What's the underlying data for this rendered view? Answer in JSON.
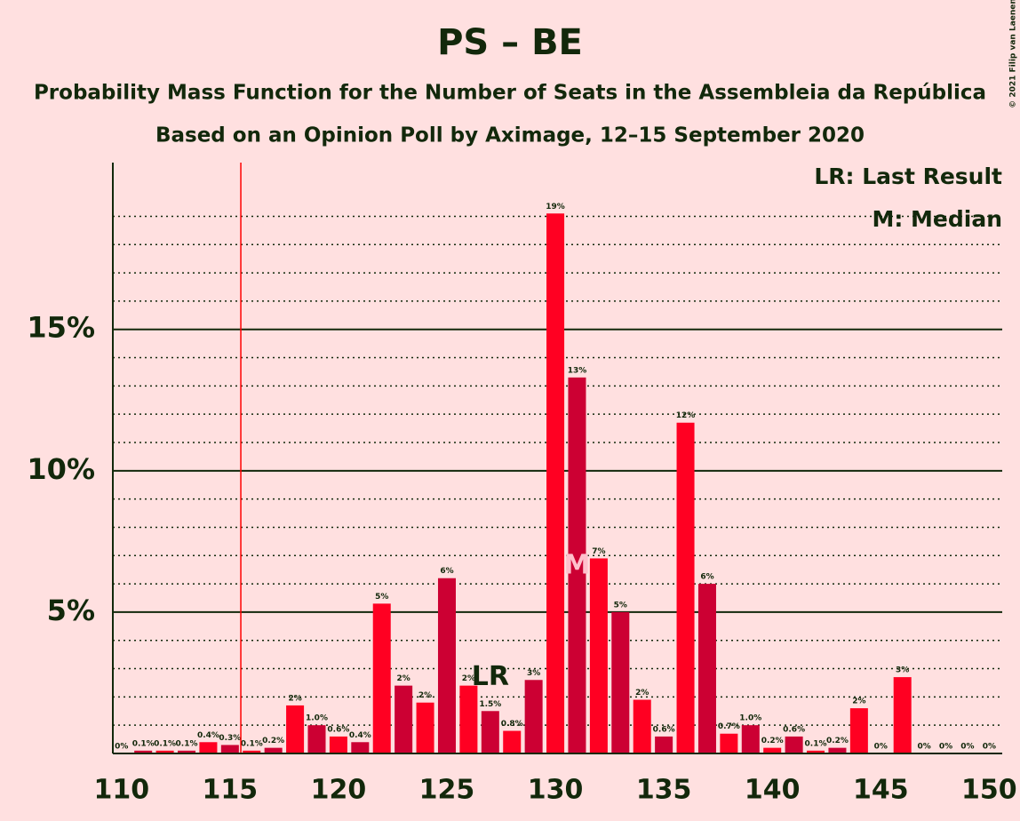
{
  "chart_data": {
    "type": "bar",
    "title": "PS – BE",
    "subtitle": "Probability Mass Function for the Number of Seats in the Assembleia da República",
    "subtitle2": "Based on an Opinion Poll by Aximage, 12–15 September 2020",
    "copyright": "© 2021 Filip van Laenen",
    "legend": [
      "LR: Last Result",
      "M: Median"
    ],
    "legend_position": "top-right",
    "x": [
      110,
      111,
      112,
      113,
      114,
      115,
      116,
      117,
      118,
      119,
      120,
      121,
      122,
      123,
      124,
      125,
      126,
      127,
      128,
      129,
      130,
      131,
      132,
      133,
      134,
      135,
      136,
      137,
      138,
      139,
      140,
      141,
      142,
      143,
      144,
      145,
      146,
      147,
      148,
      149,
      150
    ],
    "values": [
      0,
      0.1,
      0.1,
      0.1,
      0.4,
      0.3,
      0.1,
      0.2,
      1.7,
      1.0,
      0.6,
      0.4,
      5.3,
      2.4,
      1.8,
      6.2,
      2.4,
      1.5,
      0.8,
      2.6,
      19.1,
      13.3,
      6.9,
      5.0,
      1.9,
      0.6,
      11.7,
      6.0,
      0.7,
      1.0,
      0.2,
      0.6,
      0.1,
      0.2,
      1.6,
      0,
      2.7,
      0,
      0,
      0,
      0
    ],
    "value_labels": [
      "0%",
      "0.1%",
      "0.1%",
      "0.1%",
      "0.4%",
      "0.3%",
      "0.1%",
      "0.2%",
      "2%",
      "1.0%",
      "0.6%",
      "0.4%",
      "5%",
      "2%",
      "2%",
      "6%",
      "2%",
      "1.5%",
      "0.8%",
      "3%",
      "19%",
      "13%",
      "7%",
      "5%",
      "2%",
      "0.6%",
      "12%",
      "6%",
      "0.7%",
      "1.0%",
      "0.2%",
      "0.6%",
      "0.1%",
      "0.2%",
      "2%",
      "0%",
      "3%",
      "0%",
      "0%",
      "0%",
      "0%"
    ],
    "colors": [
      "#ff0022",
      "#cc0033"
    ],
    "annotations": [
      {
        "text": "LR",
        "x": 127
      },
      {
        "text": "M",
        "x": 131
      }
    ],
    "vline": 115.5,
    "vline_color": "#ff0000",
    "xlim": [
      109.6,
      150.6
    ],
    "xticks": [
      110,
      115,
      120,
      125,
      130,
      135,
      140,
      145,
      150
    ],
    "ylim": [
      0,
      20.9
    ],
    "yticks": [
      {
        "value": 5,
        "label": "5%"
      },
      {
        "value": 10,
        "label": "10%"
      },
      {
        "value": 15,
        "label": "15%"
      }
    ],
    "minor_yticks": [
      1,
      2,
      3,
      4,
      6,
      7,
      8,
      9,
      11,
      12,
      13,
      14,
      16,
      17,
      18,
      19
    ],
    "grid": true
  }
}
